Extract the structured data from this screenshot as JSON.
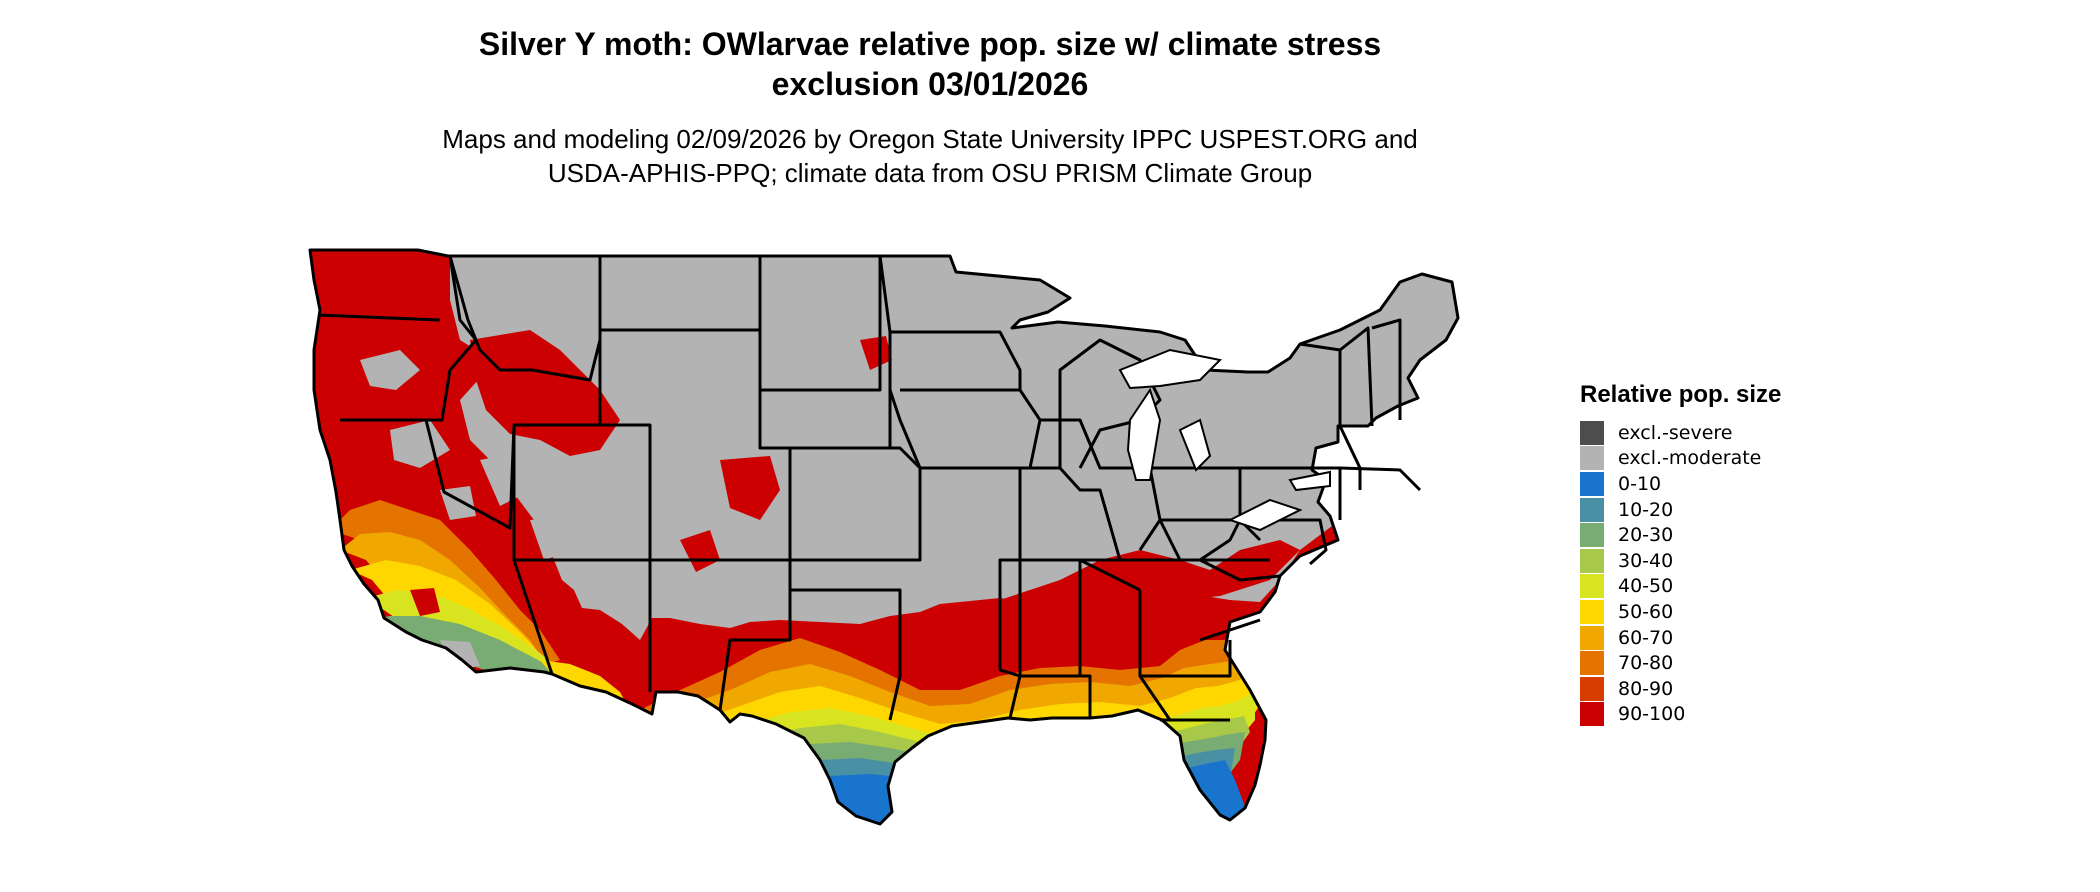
{
  "title": {
    "line1": "Silver Y moth: OWlarvae relative pop. size w/ climate stress",
    "line2": "exclusion 03/01/2026"
  },
  "subtitle": {
    "line1": "Maps and modeling 02/09/2026 by Oregon State University IPPC USPEST.ORG and",
    "line2": "USDA-APHIS-PPQ; climate data from OSU PRISM Climate Group"
  },
  "legend": {
    "title": "Relative pop. size",
    "items": [
      {
        "label": "excl.-severe",
        "color": "#4d4d4d"
      },
      {
        "label": "excl.-moderate",
        "color": "#b3b3b3"
      },
      {
        "label": "0-10",
        "color": "#1874cd"
      },
      {
        "label": "10-20",
        "color": "#4a90a4"
      },
      {
        "label": "20-30",
        "color": "#79ac72"
      },
      {
        "label": "30-40",
        "color": "#a8c84a"
      },
      {
        "label": "40-50",
        "color": "#d8e41f"
      },
      {
        "label": "50-60",
        "color": "#ffd700"
      },
      {
        "label": "60-70",
        "color": "#f0a800"
      },
      {
        "label": "70-80",
        "color": "#e57300"
      },
      {
        "label": "80-90",
        "color": "#d73c00"
      },
      {
        "label": "90-100",
        "color": "#cc0000"
      }
    ]
  }
}
